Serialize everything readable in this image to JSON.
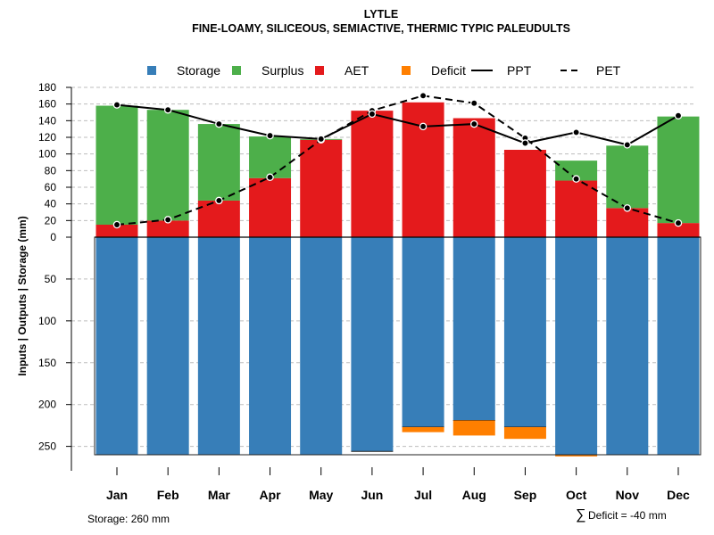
{
  "chart_data": {
    "type": "bar",
    "title": "LYTLE",
    "subtitle": "FINE-LOAMY, SILICEOUS, SEMIACTIVE, THERMIC TYPIC PALEUDULTS",
    "ylabel": "Inputs | Outputs | Storage     (mm)",
    "ylim": [
      -260,
      180
    ],
    "upper_ticks": [
      "0",
      "20",
      "40",
      "60",
      "80",
      "100",
      "120",
      "140",
      "160",
      "180"
    ],
    "lower_ticks": [
      "50",
      "100",
      "150",
      "200",
      "250"
    ],
    "categories": [
      "Jan",
      "Feb",
      "Mar",
      "Apr",
      "May",
      "Jun",
      "Jul",
      "Aug",
      "Sep",
      "Oct",
      "Nov",
      "Dec"
    ],
    "legend": [
      {
        "label": "Storage",
        "kind": "box",
        "color": "#377eb8"
      },
      {
        "label": "Surplus",
        "kind": "box",
        "color": "#4daf4a"
      },
      {
        "label": "AET",
        "kind": "box",
        "color": "#e41a1c"
      },
      {
        "label": "Deficit",
        "kind": "box",
        "color": "#ff7f00"
      },
      {
        "label": "PPT",
        "kind": "solid"
      },
      {
        "label": "PET",
        "kind": "dashed"
      }
    ],
    "series": [
      {
        "name": "AET",
        "color": "#e41a1c",
        "values": [
          15,
          20,
          44,
          71,
          117,
          152,
          162,
          143,
          105,
          68,
          35,
          17
        ]
      },
      {
        "name": "Surplus",
        "color": "#4daf4a",
        "values": [
          143,
          133,
          92,
          50,
          1,
          0,
          0,
          0,
          0,
          24,
          75,
          128
        ]
      },
      {
        "name": "Storage",
        "color": "#377eb8",
        "values": [
          260,
          260,
          260,
          260,
          260,
          256,
          227,
          219,
          227,
          260,
          260,
          260
        ]
      },
      {
        "name": "Deficit",
        "color": "#ff7f00",
        "values": [
          0,
          0,
          0,
          0,
          0,
          0,
          6,
          18,
          14,
          2,
          0,
          0
        ]
      },
      {
        "name": "PPT",
        "values": [
          159,
          153,
          136,
          122,
          118,
          148,
          133,
          136,
          113,
          126,
          111,
          146
        ]
      },
      {
        "name": "PET",
        "values": [
          15,
          21,
          44,
          72,
          117,
          152,
          170,
          161,
          119,
          70,
          35,
          17
        ]
      }
    ],
    "storage_note": "Storage: 260 mm",
    "deficit_note": "Deficit = -40 mm",
    "sum_symbol": "∑"
  }
}
